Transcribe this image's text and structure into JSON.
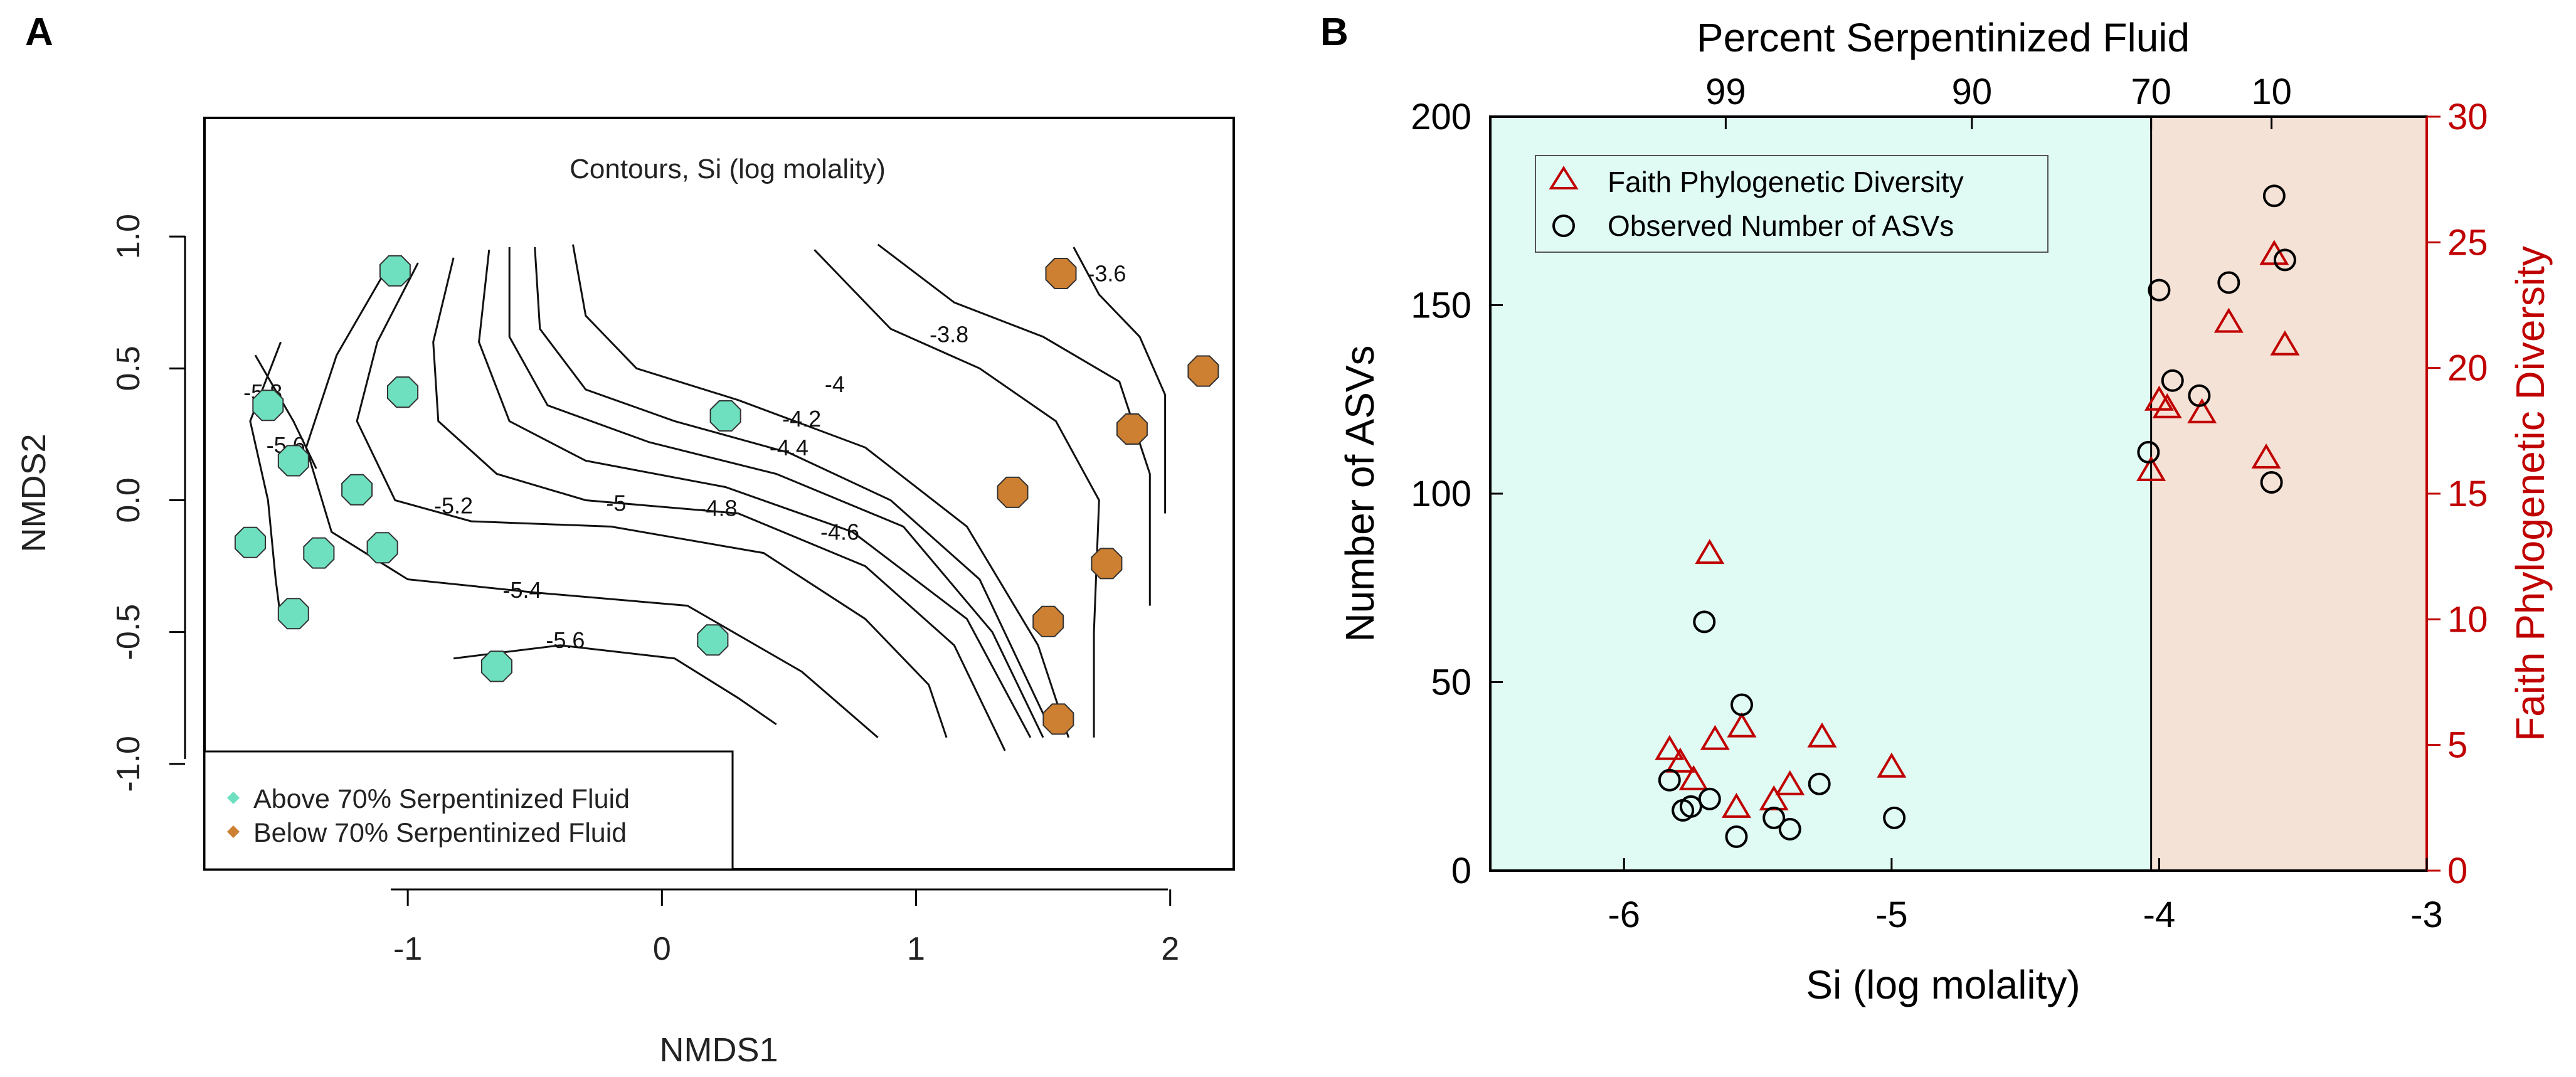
{
  "panels": {
    "a": "A",
    "b": "B"
  },
  "chart_data": [
    {
      "type": "scatter",
      "panel": "A",
      "title": "Contours, Si (log molality)",
      "xlabel": "NMDS1",
      "ylabel": "NMDS2",
      "xlim": [
        -1.8,
        2.25
      ],
      "ylim": [
        -1.4,
        1.45
      ],
      "xticks": [
        -1,
        0,
        1,
        2
      ],
      "xtick_labels": [
        "-1",
        "0",
        "1",
        "2"
      ],
      "yticks": [
        -1.0,
        -0.5,
        0.0,
        0.5,
        1.0
      ],
      "ytick_labels": [
        "-1.0",
        "-0.5",
        "0.0",
        "0.5",
        "1.0"
      ],
      "legend_position": "bottom-left",
      "series": [
        {
          "name": "Above 70% Serpentinized Fluid",
          "color": "#6ee0c0",
          "points": [
            [
              -1.05,
              0.87
            ],
            [
              -1.55,
              0.36
            ],
            [
              -1.45,
              0.15
            ],
            [
              -1.02,
              0.41
            ],
            [
              -1.2,
              0.04
            ],
            [
              -1.62,
              -0.16
            ],
            [
              -1.35,
              -0.2
            ],
            [
              -1.1,
              -0.18
            ],
            [
              -1.45,
              -0.43
            ],
            [
              0.25,
              0.32
            ],
            [
              0.2,
              -0.53
            ],
            [
              -0.65,
              -0.63
            ]
          ]
        },
        {
          "name": "Below 70% Serpentinized Fluid",
          "color": "#cd7f32",
          "points": [
            [
              1.57,
              0.86
            ],
            [
              2.13,
              0.49
            ],
            [
              1.85,
              0.27
            ],
            [
              1.38,
              0.03
            ],
            [
              1.75,
              -0.24
            ],
            [
              1.52,
              -0.46
            ],
            [
              1.56,
              -0.83
            ]
          ]
        }
      ],
      "contours": [
        {
          "label": "-5.8",
          "points": [
            [
              -1.5,
              0.6
            ],
            [
              -1.62,
              0.3
            ],
            [
              -1.55,
              0.0
            ],
            [
              -1.52,
              -0.3
            ],
            [
              -1.5,
              -0.45
            ]
          ],
          "label_at": [
            -1.57,
            0.38
          ]
        },
        {
          "label": "-5.6",
          "points": [
            [
              -0.82,
              -0.6
            ],
            [
              -0.4,
              -0.55
            ],
            [
              0.05,
              -0.6
            ],
            [
              0.3,
              -0.75
            ],
            [
              0.45,
              -0.85
            ]
          ],
          "label_at": [
            -0.38,
            -0.56
          ]
        },
        {
          "label": "-5.4",
          "points": [
            [
              -1.1,
              0.85
            ],
            [
              -1.28,
              0.55
            ],
            [
              -1.4,
              0.2
            ],
            [
              -1.3,
              -0.12
            ],
            [
              -1.0,
              -0.3
            ],
            [
              -0.5,
              -0.35
            ],
            [
              0.1,
              -0.4
            ],
            [
              0.55,
              -0.65
            ],
            [
              0.85,
              -0.9
            ]
          ],
          "label_at": [
            -0.55,
            -0.37
          ]
        },
        {
          "label": "-5.6",
          "points": [
            [
              -1.6,
              0.55
            ],
            [
              -1.45,
              0.3
            ],
            [
              -1.36,
              0.12
            ]
          ],
          "label_at": [
            -1.48,
            0.18
          ]
        },
        {
          "label": "-5.2",
          "points": [
            [
              -0.96,
              0.9
            ],
            [
              -1.12,
              0.6
            ],
            [
              -1.2,
              0.3
            ],
            [
              -1.05,
              0.0
            ],
            [
              -0.75,
              -0.08
            ],
            [
              -0.2,
              -0.1
            ],
            [
              0.4,
              -0.2
            ],
            [
              0.8,
              -0.45
            ],
            [
              1.05,
              -0.7
            ],
            [
              1.12,
              -0.9
            ]
          ],
          "label_at": [
            -0.82,
            -0.05
          ]
        },
        {
          "label": "-5",
          "points": [
            [
              -0.82,
              0.92
            ],
            [
              -0.9,
              0.6
            ],
            [
              -0.88,
              0.3
            ],
            [
              -0.65,
              0.1
            ],
            [
              -0.3,
              0.0
            ],
            [
              0.3,
              -0.05
            ],
            [
              0.8,
              -0.25
            ],
            [
              1.15,
              -0.55
            ],
            [
              1.35,
              -0.95
            ]
          ],
          "label_at": [
            -0.18,
            -0.04
          ]
        },
        {
          "label": "-4.8",
          "points": [
            [
              -0.68,
              0.95
            ],
            [
              -0.72,
              0.6
            ],
            [
              -0.6,
              0.3
            ],
            [
              -0.3,
              0.15
            ],
            [
              0.25,
              0.05
            ],
            [
              0.75,
              -0.12
            ],
            [
              1.2,
              -0.45
            ],
            [
              1.45,
              -0.9
            ]
          ],
          "label_at": [
            0.22,
            -0.06
          ]
        },
        {
          "label": "-4.4",
          "points": [
            [
              -0.5,
              0.96
            ],
            [
              -0.48,
              0.65
            ],
            [
              -0.3,
              0.42
            ],
            [
              0.05,
              0.3
            ],
            [
              0.5,
              0.18
            ],
            [
              0.9,
              0.0
            ],
            [
              1.25,
              -0.3
            ],
            [
              1.52,
              -0.85
            ]
          ],
          "label_at": [
            0.5,
            0.17
          ]
        },
        {
          "label": "-4.6",
          "points": [
            [
              -0.6,
              0.96
            ],
            [
              -0.6,
              0.62
            ],
            [
              -0.45,
              0.36
            ],
            [
              -0.05,
              0.22
            ],
            [
              0.45,
              0.1
            ],
            [
              0.95,
              -0.1
            ],
            [
              1.3,
              -0.5
            ],
            [
              1.5,
              -0.9
            ]
          ],
          "label_at": [
            0.7,
            -0.15
          ]
        },
        {
          "label": "-4.2",
          "points": [
            [
              -0.35,
              0.97
            ],
            [
              -0.3,
              0.7
            ],
            [
              -0.1,
              0.5
            ],
            [
              0.3,
              0.38
            ],
            [
              0.8,
              0.2
            ],
            [
              1.2,
              -0.1
            ],
            [
              1.48,
              -0.55
            ],
            [
              1.6,
              -0.9
            ]
          ],
          "label_at": [
            0.55,
            0.28
          ]
        },
        {
          "label": "-4",
          "points": [
            [
              0.6,
              0.95
            ],
            [
              0.9,
              0.65
            ],
            [
              1.25,
              0.5
            ],
            [
              1.55,
              0.3
            ],
            [
              1.72,
              0.0
            ],
            [
              1.7,
              -0.5
            ],
            [
              1.7,
              -0.9
            ]
          ],
          "label_at": [
            0.68,
            0.41
          ]
        },
        {
          "label": "-3.8",
          "points": [
            [
              0.85,
              0.97
            ],
            [
              1.15,
              0.75
            ],
            [
              1.5,
              0.62
            ],
            [
              1.8,
              0.45
            ],
            [
              1.92,
              0.1
            ],
            [
              1.92,
              -0.4
            ]
          ],
          "label_at": [
            1.13,
            0.6
          ]
        },
        {
          "label": "-3.6",
          "points": [
            [
              1.62,
              0.96
            ],
            [
              1.72,
              0.78
            ],
            [
              1.88,
              0.62
            ],
            [
              1.98,
              0.4
            ],
            [
              1.98,
              -0.05
            ]
          ],
          "label_at": [
            1.75,
            0.83
          ]
        }
      ]
    },
    {
      "type": "scatter",
      "panel": "B",
      "xlabel": "Si (log molality)",
      "ylabel": "Number of ASVs",
      "ylabel_right": "Faith Phylogenetic Diversity",
      "top_axis_title": "Percent Serpentinized Fluid",
      "top_ticks": [
        {
          "x": -5.62,
          "label": "99"
        },
        {
          "x": -4.7,
          "label": "90"
        },
        {
          "x": -4.03,
          "label": "70"
        },
        {
          "x": -3.58,
          "label": "10"
        }
      ],
      "xlim": [
        -6.5,
        -3.0
      ],
      "xticks": [
        -6,
        -5,
        -4,
        -3
      ],
      "xtick_labels": [
        "-6",
        "-5",
        "-4",
        "-3"
      ],
      "ylim": [
        0,
        200
      ],
      "yticks": [
        0,
        50,
        100,
        150,
        200
      ],
      "ytick_labels": [
        "0",
        "50",
        "100",
        "150",
        "200"
      ],
      "ylim_right": [
        0,
        30
      ],
      "yticks_right": [
        0,
        5,
        10,
        15,
        20,
        25,
        30
      ],
      "ytick_labels_right": [
        "0",
        "5",
        "10",
        "15",
        "20",
        "25",
        "30"
      ],
      "shaded_regions": [
        {
          "x_from": -6.5,
          "x_to": -4.03,
          "color": "#e0fbf3"
        },
        {
          "x_from": -4.03,
          "x_to": -3.0,
          "color": "#f5e2d6"
        }
      ],
      "legend_position": "top-left",
      "series": [
        {
          "name": "Faith Phylogenetic Diversity",
          "axis": "right",
          "marker": "triangle",
          "color": "#c00000",
          "x": [
            -5.83,
            -5.79,
            -5.74,
            -5.68,
            -5.66,
            -5.58,
            -5.56,
            -5.44,
            -5.38,
            -5.26,
            -5.0,
            -4.03,
            -4.0,
            -3.97,
            -3.84,
            -3.74,
            -3.6,
            -3.57,
            -3.53
          ],
          "y": [
            4.8,
            4.3,
            3.6,
            12.6,
            5.2,
            2.5,
            5.7,
            2.8,
            3.4,
            5.3,
            4.1,
            15.9,
            18.7,
            18.4,
            18.2,
            21.8,
            16.4,
            24.5,
            20.9
          ]
        },
        {
          "name": "Observed Number of ASVs",
          "axis": "left",
          "marker": "circle",
          "color": "#000000",
          "x": [
            -5.83,
            -5.78,
            -5.75,
            -5.68,
            -5.7,
            -5.58,
            -5.56,
            -5.44,
            -5.38,
            -5.27,
            -4.99,
            -4.04,
            -4.0,
            -3.95,
            -3.85,
            -3.74,
            -3.58,
            -3.57,
            -3.53
          ],
          "y": [
            24,
            16,
            17,
            19,
            66,
            9,
            44,
            14,
            11,
            23,
            14,
            111,
            154,
            130,
            126,
            156,
            103,
            179,
            162
          ]
        }
      ]
    }
  ]
}
